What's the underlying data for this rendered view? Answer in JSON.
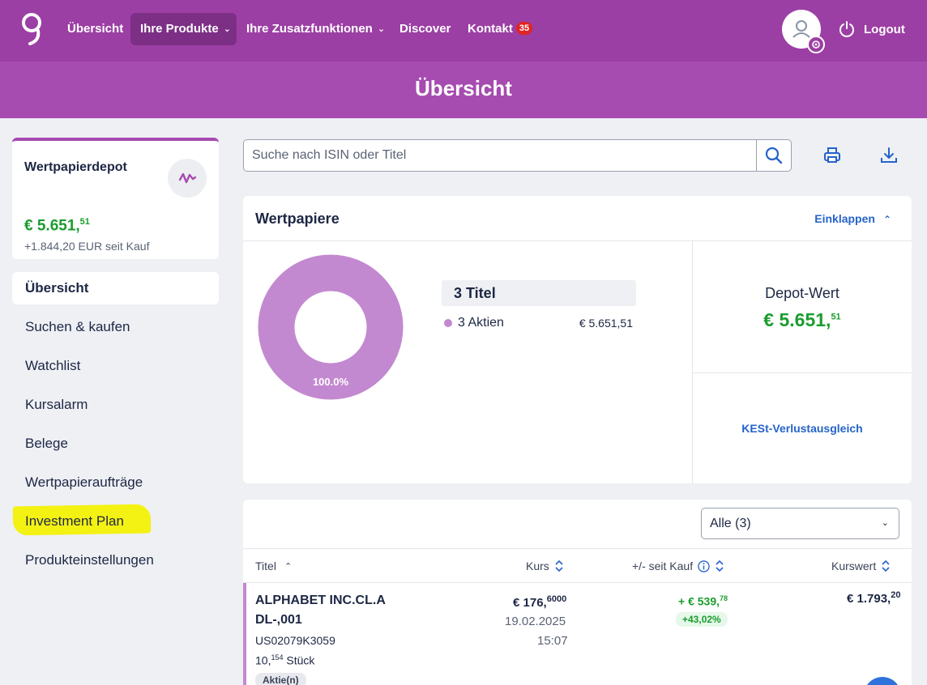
{
  "nav": {
    "items": [
      {
        "label": "Übersicht"
      },
      {
        "label": "Ihre Produkte"
      },
      {
        "label": "Ihre Zusatzfunktionen"
      },
      {
        "label": "Discover"
      },
      {
        "label": "Kontakt",
        "badge": "35"
      }
    ],
    "logout_label": "Logout"
  },
  "banner": {
    "title": "Übersicht"
  },
  "depot": {
    "title": "Wertpapierdepot",
    "value_main": "€ 5.651,",
    "value_cents": "51",
    "since": "+1.844,20 EUR seit Kauf"
  },
  "sidebar": {
    "items": [
      {
        "label": "Übersicht"
      },
      {
        "label": "Suchen & kaufen"
      },
      {
        "label": "Watchlist"
      },
      {
        "label": "Kursalarm"
      },
      {
        "label": "Belege"
      },
      {
        "label": "Wertpapieraufträge"
      },
      {
        "label": "Investment Plan"
      },
      {
        "label": "Produkteinstellungen"
      }
    ]
  },
  "search": {
    "placeholder": "Suche nach ISIN oder Titel"
  },
  "wertpapiere": {
    "title": "Wertpapiere",
    "collapse_label": "Einklappen",
    "donut_label": "100.0%",
    "donut_share": 1.0,
    "titel_count": "3 Titel",
    "legend": [
      {
        "label": "3 Aktien",
        "value": "€ 5.651,51"
      }
    ],
    "depotwert_label": "Depot-Wert",
    "depotwert_main": "€ 5.651,",
    "depotwert_cents": "51",
    "kest_label": "KESt-Verlustausgleich"
  },
  "table": {
    "filter_value": "Alle (3)",
    "headers": {
      "titel": "Titel",
      "kurs": "Kurs",
      "plusminus": "+/- seit Kauf",
      "kurswert": "Kurswert"
    },
    "rows": [
      {
        "name_line1": "ALPHABET INC.CL.A",
        "name_line2": "DL-,001",
        "isin": "US02079K3059",
        "qty_main": "10,",
        "qty_frac": "154",
        "qty_unit": " Stück",
        "tag": "Aktie(n)",
        "kurs_main": "€ 176,",
        "kurs_frac": "6000",
        "date": "19.02.2025",
        "time": "15:07",
        "gain_main": "+ € 539,",
        "gain_frac": "78",
        "gain_pct": "+43,02%",
        "wert_main": "€ 1.793,",
        "wert_frac": "20"
      }
    ]
  },
  "colors": {
    "brand": "#9c3fa4",
    "banner": "#a64bb0",
    "positive": "#1b9c2e",
    "link": "#2563c9",
    "donut": "#c389d0",
    "highlight": "#f4f213"
  }
}
